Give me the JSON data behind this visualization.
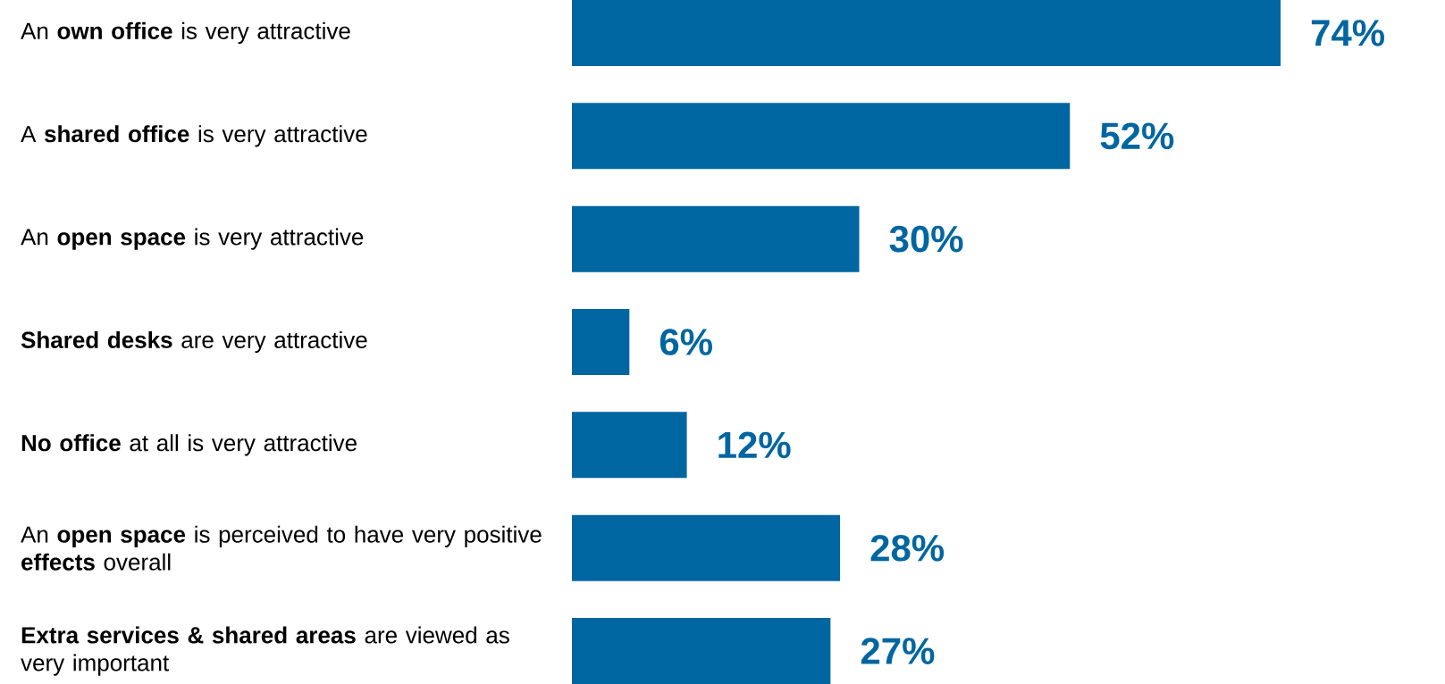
{
  "chart_data": {
    "type": "bar",
    "orientation": "horizontal",
    "color": "#0066a1",
    "categories": [
      "An **own office** is very attractive",
      "A **shared office** is very attractive",
      "An **open space** is very attractive",
      "**Shared desks** are very attractive",
      "**No office** at all is very attractive",
      "An **open space** is perceived to have very positive **effects** overall",
      "**Extra services & shared areas** are viewed as very important"
    ],
    "values": [
      74,
      52,
      30,
      6,
      12,
      28,
      27
    ],
    "value_labels": [
      "74%",
      "52%",
      "30%",
      "6%",
      "12%",
      "28%",
      "27%"
    ]
  }
}
